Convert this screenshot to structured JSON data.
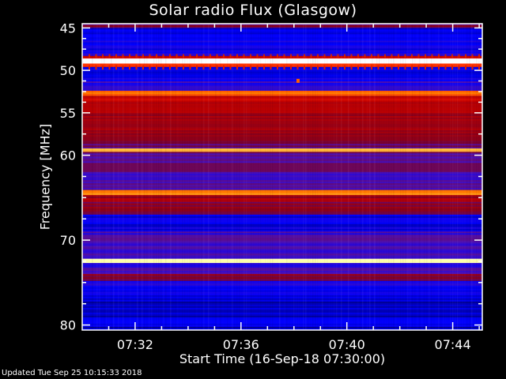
{
  "chart_data": {
    "type": "heatmap",
    "title": "Solar radio Flux (Glasgow)",
    "xlabel": "Start Time (16-Sep-18 07:30:00)",
    "ylabel": "Frequency [MHz]",
    "xlim": [
      "07:30:00",
      "07:45:07"
    ],
    "ylim": [
      80.6,
      44.5
    ],
    "x_ticks": [
      "07:32",
      "07:36",
      "07:40",
      "07:44"
    ],
    "y_ticks": [
      45,
      50,
      55,
      60,
      70,
      80
    ],
    "y_minor_ticks": [
      46.25,
      47.5,
      48.75,
      51.25,
      52.5,
      53.75,
      57.5,
      62.5,
      65,
      67.5,
      72.5,
      75,
      77.5
    ],
    "colormap": [
      "#000080",
      "#0000ff",
      "#5010b0",
      "#800020",
      "#c00000",
      "#ff2000",
      "#ff8000",
      "#ffff80",
      "#ffffff"
    ],
    "bands": [
      {
        "f0": 44.5,
        "f1": 45.0,
        "level": 0.35
      },
      {
        "f0": 45.0,
        "f1": 46.5,
        "level": 0.1
      },
      {
        "f0": 46.5,
        "f1": 48.3,
        "level": 0.14
      },
      {
        "f0": 48.3,
        "f1": 48.6,
        "level": 0.55
      },
      {
        "f0": 48.6,
        "f1": 49.2,
        "level": 1.0
      },
      {
        "f0": 49.2,
        "f1": 49.6,
        "level": 0.6
      },
      {
        "f0": 49.6,
        "f1": 51.3,
        "level": 0.12
      },
      {
        "f0": 51.3,
        "f1": 52.4,
        "level": 0.2
      },
      {
        "f0": 52.4,
        "f1": 53.0,
        "level": 0.72
      },
      {
        "f0": 53.0,
        "f1": 55.0,
        "level": 0.5
      },
      {
        "f0": 55.0,
        "f1": 58.3,
        "level": 0.42
      },
      {
        "f0": 58.3,
        "f1": 59.2,
        "level": 0.32
      },
      {
        "f0": 59.2,
        "f1": 59.6,
        "level": 0.82
      },
      {
        "f0": 59.6,
        "f1": 62.0,
        "level": 0.28
      },
      {
        "f0": 62.0,
        "f1": 64.1,
        "level": 0.26
      },
      {
        "f0": 64.1,
        "f1": 64.7,
        "level": 0.75
      },
      {
        "f0": 64.7,
        "f1": 65.5,
        "level": 0.45
      },
      {
        "f0": 65.5,
        "f1": 67.0,
        "level": 0.38
      },
      {
        "f0": 67.0,
        "f1": 69.0,
        "level": 0.12
      },
      {
        "f0": 69.0,
        "f1": 72.2,
        "level": 0.22
      },
      {
        "f0": 72.2,
        "f1": 72.7,
        "level": 0.92
      },
      {
        "f0": 72.7,
        "f1": 74.0,
        "level": 0.2
      },
      {
        "f0": 74.0,
        "f1": 74.8,
        "level": 0.38
      },
      {
        "f0": 74.8,
        "f1": 76.5,
        "level": 0.14
      },
      {
        "f0": 76.5,
        "f1": 80.6,
        "level": 0.08
      }
    ]
  },
  "footer": {
    "updated": "Updated Tue Sep 25 10:15:33 2018"
  }
}
